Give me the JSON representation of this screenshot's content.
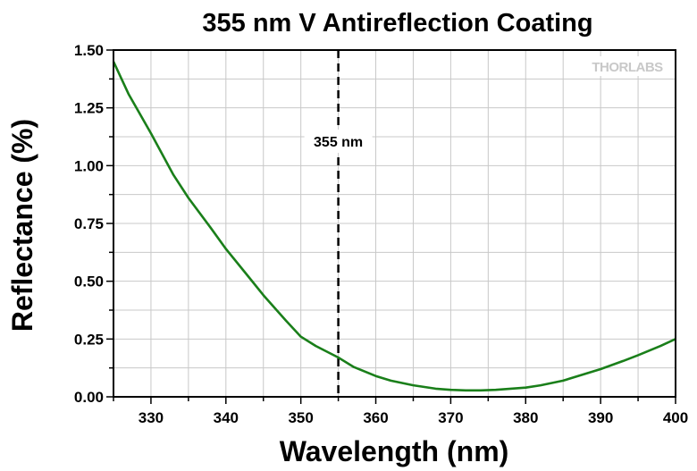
{
  "chart_data": {
    "type": "line",
    "title": "355 nm V Antireflection Coating",
    "xlabel": "Wavelength (nm)",
    "ylabel": "Reflectance (%)",
    "xlim": [
      325,
      400
    ],
    "ylim": [
      0,
      1.5
    ],
    "x_ticks": [
      "330",
      "340",
      "350",
      "360",
      "370",
      "380",
      "390",
      "400"
    ],
    "y_ticks": [
      "0.00",
      "0.25",
      "0.50",
      "0.75",
      "1.00",
      "1.25",
      "1.50"
    ],
    "grid": true,
    "legend": "none",
    "series": [
      {
        "color": "#1a7f1a",
        "x": [
          325,
          327,
          330,
          333,
          335,
          338,
          340,
          343,
          345,
          348,
          350,
          352,
          355,
          357,
          360,
          362,
          365,
          368,
          370,
          372,
          374,
          376,
          378,
          380,
          382,
          385,
          388,
          390,
          393,
          395,
          398,
          400
        ],
        "y": [
          1.45,
          1.31,
          1.14,
          0.96,
          0.86,
          0.73,
          0.64,
          0.52,
          0.44,
          0.33,
          0.26,
          0.22,
          0.17,
          0.13,
          0.09,
          0.07,
          0.05,
          0.035,
          0.03,
          0.028,
          0.028,
          0.03,
          0.035,
          0.04,
          0.05,
          0.07,
          0.1,
          0.12,
          0.155,
          0.18,
          0.22,
          0.25
        ]
      }
    ],
    "annotations": [
      {
        "text": "355 nm",
        "x": 355,
        "style": "dashed vertical line"
      }
    ]
  },
  "watermark": {
    "text": "THORLABS"
  }
}
